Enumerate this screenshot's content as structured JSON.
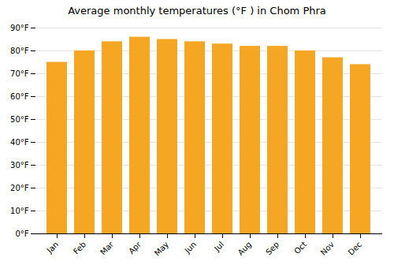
{
  "chart_data": {
    "type": "bar",
    "title": "Average monthly temperatures (°F ) in Chom Phra",
    "categories": [
      "Jan",
      "Feb",
      "Mar",
      "Apr",
      "May",
      "Jun",
      "Jul",
      "Aug",
      "Sep",
      "Oct",
      "Nov",
      "Dec"
    ],
    "values": [
      75,
      80,
      84,
      86,
      85,
      84,
      83,
      82,
      82,
      80,
      77,
      74
    ],
    "color": "#F5A623",
    "ylim": [
      0,
      90
    ],
    "yticks": [
      {
        "value": 0,
        "label": "0°F"
      },
      {
        "value": 10,
        "label": "10°F"
      },
      {
        "value": 20,
        "label": "20°F"
      },
      {
        "value": 30,
        "label": "30°F"
      },
      {
        "value": 40,
        "label": "40°F"
      },
      {
        "value": 50,
        "label": "50°F"
      },
      {
        "value": 60,
        "label": "60°F"
      },
      {
        "value": 70,
        "label": "70°F"
      },
      {
        "value": 80,
        "label": "80°F"
      },
      {
        "value": 90,
        "label": "90°F"
      }
    ],
    "grid": true
  }
}
